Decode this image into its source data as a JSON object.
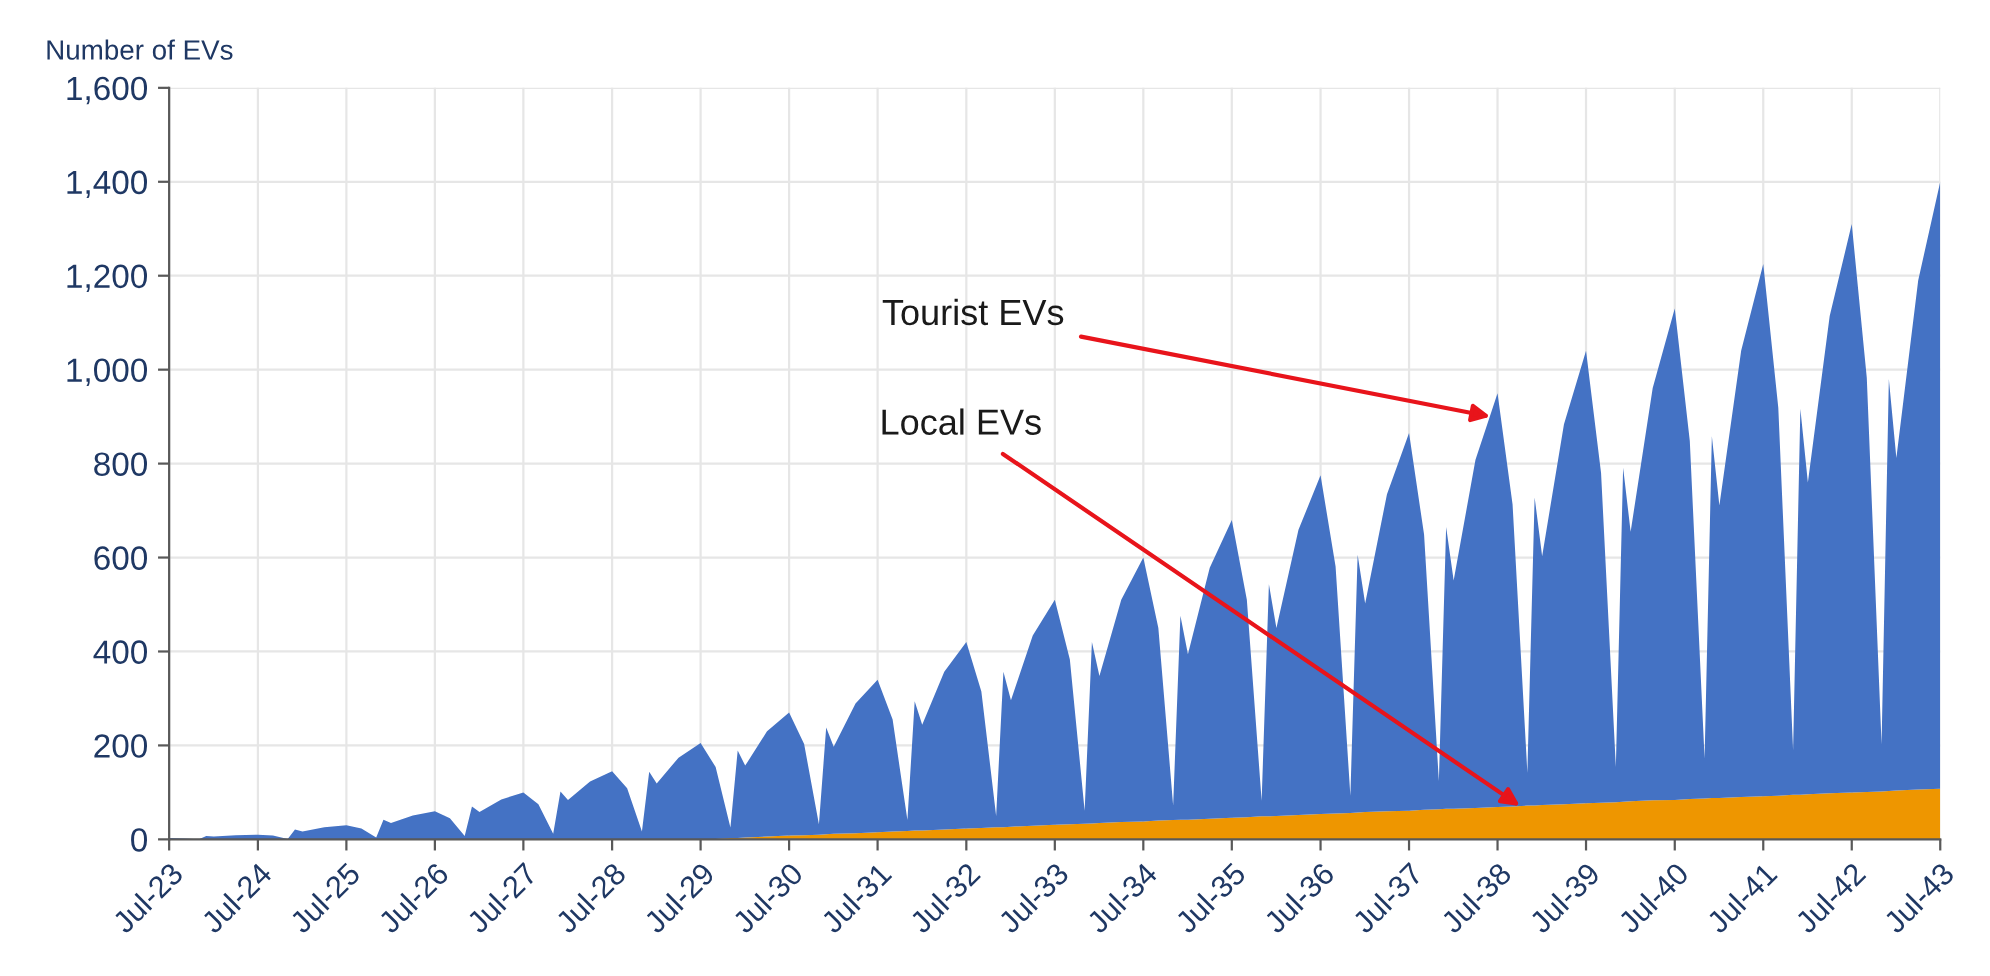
{
  "chart_data": {
    "type": "area",
    "stacked": true,
    "ylabel": "Number of EVs",
    "x": [
      "2023-07",
      "2023-09",
      "2023-11",
      "2023-12",
      "2024-01",
      "2024-04",
      "2024-07",
      "2024-09",
      "2024-11",
      "2024-12",
      "2025-01",
      "2025-04",
      "2025-07",
      "2025-09",
      "2025-11",
      "2025-12",
      "2026-01",
      "2026-04",
      "2026-07",
      "2026-09",
      "2026-11",
      "2026-12",
      "2027-01",
      "2027-04",
      "2027-07",
      "2027-09",
      "2027-11",
      "2027-12",
      "2028-01",
      "2028-04",
      "2028-07",
      "2028-09",
      "2028-11",
      "2028-12",
      "2029-01",
      "2029-04",
      "2029-07",
      "2029-09",
      "2029-11",
      "2029-12",
      "2030-01",
      "2030-04",
      "2030-07",
      "2030-09",
      "2030-11",
      "2030-12",
      "2031-01",
      "2031-04",
      "2031-07",
      "2031-09",
      "2031-11",
      "2031-12",
      "2032-01",
      "2032-04",
      "2032-07",
      "2032-09",
      "2032-11",
      "2032-12",
      "2033-01",
      "2033-04",
      "2033-07",
      "2033-09",
      "2033-11",
      "2033-12",
      "2034-01",
      "2034-04",
      "2034-07",
      "2034-09",
      "2034-11",
      "2034-12",
      "2035-01",
      "2035-04",
      "2035-07",
      "2035-09",
      "2035-11",
      "2035-12",
      "2036-01",
      "2036-04",
      "2036-07",
      "2036-09",
      "2036-11",
      "2036-12",
      "2037-01",
      "2037-04",
      "2037-07",
      "2037-09",
      "2037-11",
      "2037-12",
      "2038-01",
      "2038-04",
      "2038-07",
      "2038-09",
      "2038-11",
      "2038-12",
      "2039-01",
      "2039-04",
      "2039-07",
      "2039-09",
      "2039-11",
      "2039-12",
      "2040-01",
      "2040-04",
      "2040-07",
      "2040-09",
      "2040-11",
      "2040-12",
      "2041-01",
      "2041-04",
      "2041-07",
      "2041-09",
      "2041-11",
      "2041-12",
      "2042-01",
      "2042-04",
      "2042-07",
      "2042-09",
      "2042-11",
      "2042-12",
      "2043-01",
      "2043-04",
      "2043-07"
    ],
    "series": [
      {
        "color": "#ee9600",
        "values": [
          0,
          0,
          0,
          0,
          0,
          0,
          0,
          0,
          0,
          0,
          0,
          0,
          0,
          0,
          0,
          0,
          0,
          0,
          0,
          0,
          0,
          0,
          0,
          0,
          0,
          0,
          0,
          0,
          0,
          0,
          0,
          0,
          0,
          0,
          0,
          0,
          0,
          1,
          3,
          3,
          4,
          6,
          8,
          9,
          10,
          11,
          12,
          13,
          15,
          17,
          18,
          19,
          19,
          21,
          23,
          24,
          26,
          26,
          27,
          29,
          31,
          32,
          33,
          34,
          35,
          37,
          38,
          40,
          41,
          42,
          42,
          44,
          46,
          47,
          49,
          49,
          50,
          52,
          54,
          55,
          56,
          57,
          58,
          60,
          61,
          63,
          64,
          65,
          65,
          67,
          69,
          70,
          72,
          72,
          73,
          75,
          77,
          78,
          79,
          80,
          81,
          83,
          84,
          86,
          87,
          88,
          88,
          90,
          92,
          93,
          95,
          95,
          96,
          98,
          100,
          101,
          102,
          103,
          104,
          106,
          108
        ]
      },
      {
        "color": "#4472c4",
        "values": [
          3,
          2,
          0,
          7,
          6,
          9,
          10,
          8,
          1,
          21,
          17,
          26,
          30,
          23,
          4,
          42,
          35,
          51,
          60,
          45,
          7,
          70,
          58,
          85,
          100,
          75,
          12,
          102,
          84,
          123,
          145,
          109,
          17,
          144,
          119,
          174,
          205,
          153,
          22,
          186,
          153,
          224,
          262,
          194,
          22,
          227,
          185,
          276,
          325,
          238,
          23,
          275,
          225,
          336,
          397,
          291,
          24,
          331,
          269,
          405,
          479,
          351,
          28,
          386,
          313,
          473,
          562,
          410,
          31,
          434,
          352,
          534,
          634,
          463,
          33,
          494,
          400,
          607,
          721,
          526,
          37,
          549,
          444,
          675,
          804,
          586,
          60,
          600,
          486,
          741,
          881,
          643,
          70,
          656,
          530,
          809,
          963,
          702,
          75,
          711,
          574,
          878,
          1046,
          762,
          85,
          770,
          623,
          951,
          1133,
          826,
          95,
          822,
          664,
          1016,
          1210,
          882,
          100,
          877,
          708,
          1084,
          1292
        ]
      }
    ],
    "xlim": [
      "2023-07",
      "2043-07"
    ],
    "xticks": [
      {
        "value": "2023-07",
        "label": "Jul-23"
      },
      {
        "value": "2024-07",
        "label": "Jul-24"
      },
      {
        "value": "2025-07",
        "label": "Jul-25"
      },
      {
        "value": "2026-07",
        "label": "Jul-26"
      },
      {
        "value": "2027-07",
        "label": "Jul-27"
      },
      {
        "value": "2028-07",
        "label": "Jul-28"
      },
      {
        "value": "2029-07",
        "label": "Jul-29"
      },
      {
        "value": "2030-07",
        "label": "Jul-30"
      },
      {
        "value": "2031-07",
        "label": "Jul-31"
      },
      {
        "value": "2032-07",
        "label": "Jul-32"
      },
      {
        "value": "2033-07",
        "label": "Jul-33"
      },
      {
        "value": "2034-07",
        "label": "Jul-34"
      },
      {
        "value": "2035-07",
        "label": "Jul-35"
      },
      {
        "value": "2036-07",
        "label": "Jul-36"
      },
      {
        "value": "2037-07",
        "label": "Jul-37"
      },
      {
        "value": "2038-07",
        "label": "Jul-38"
      },
      {
        "value": "2039-07",
        "label": "Jul-39"
      },
      {
        "value": "2040-07",
        "label": "Jul-40"
      },
      {
        "value": "2041-07",
        "label": "Jul-41"
      },
      {
        "value": "2042-07",
        "label": "Jul-42"
      },
      {
        "value": "2043-07",
        "label": "Jul-43"
      }
    ],
    "ylim": [
      0,
      1600
    ],
    "yticks": [
      0,
      200,
      400,
      600,
      800,
      {
        "value": 1000,
        "label": "1,000"
      },
      {
        "value": 1200,
        "label": "1,200"
      },
      {
        "value": 1400,
        "label": "1,400"
      },
      {
        "value": 1600,
        "label": "1,600"
      }
    ],
    "grid": true,
    "annotations": [
      {
        "text": "Tourist EVs",
        "x": "2038-06",
        "y": 900
      },
      {
        "text": "Local EVs",
        "x": "2038-10",
        "y": 71
      }
    ]
  }
}
